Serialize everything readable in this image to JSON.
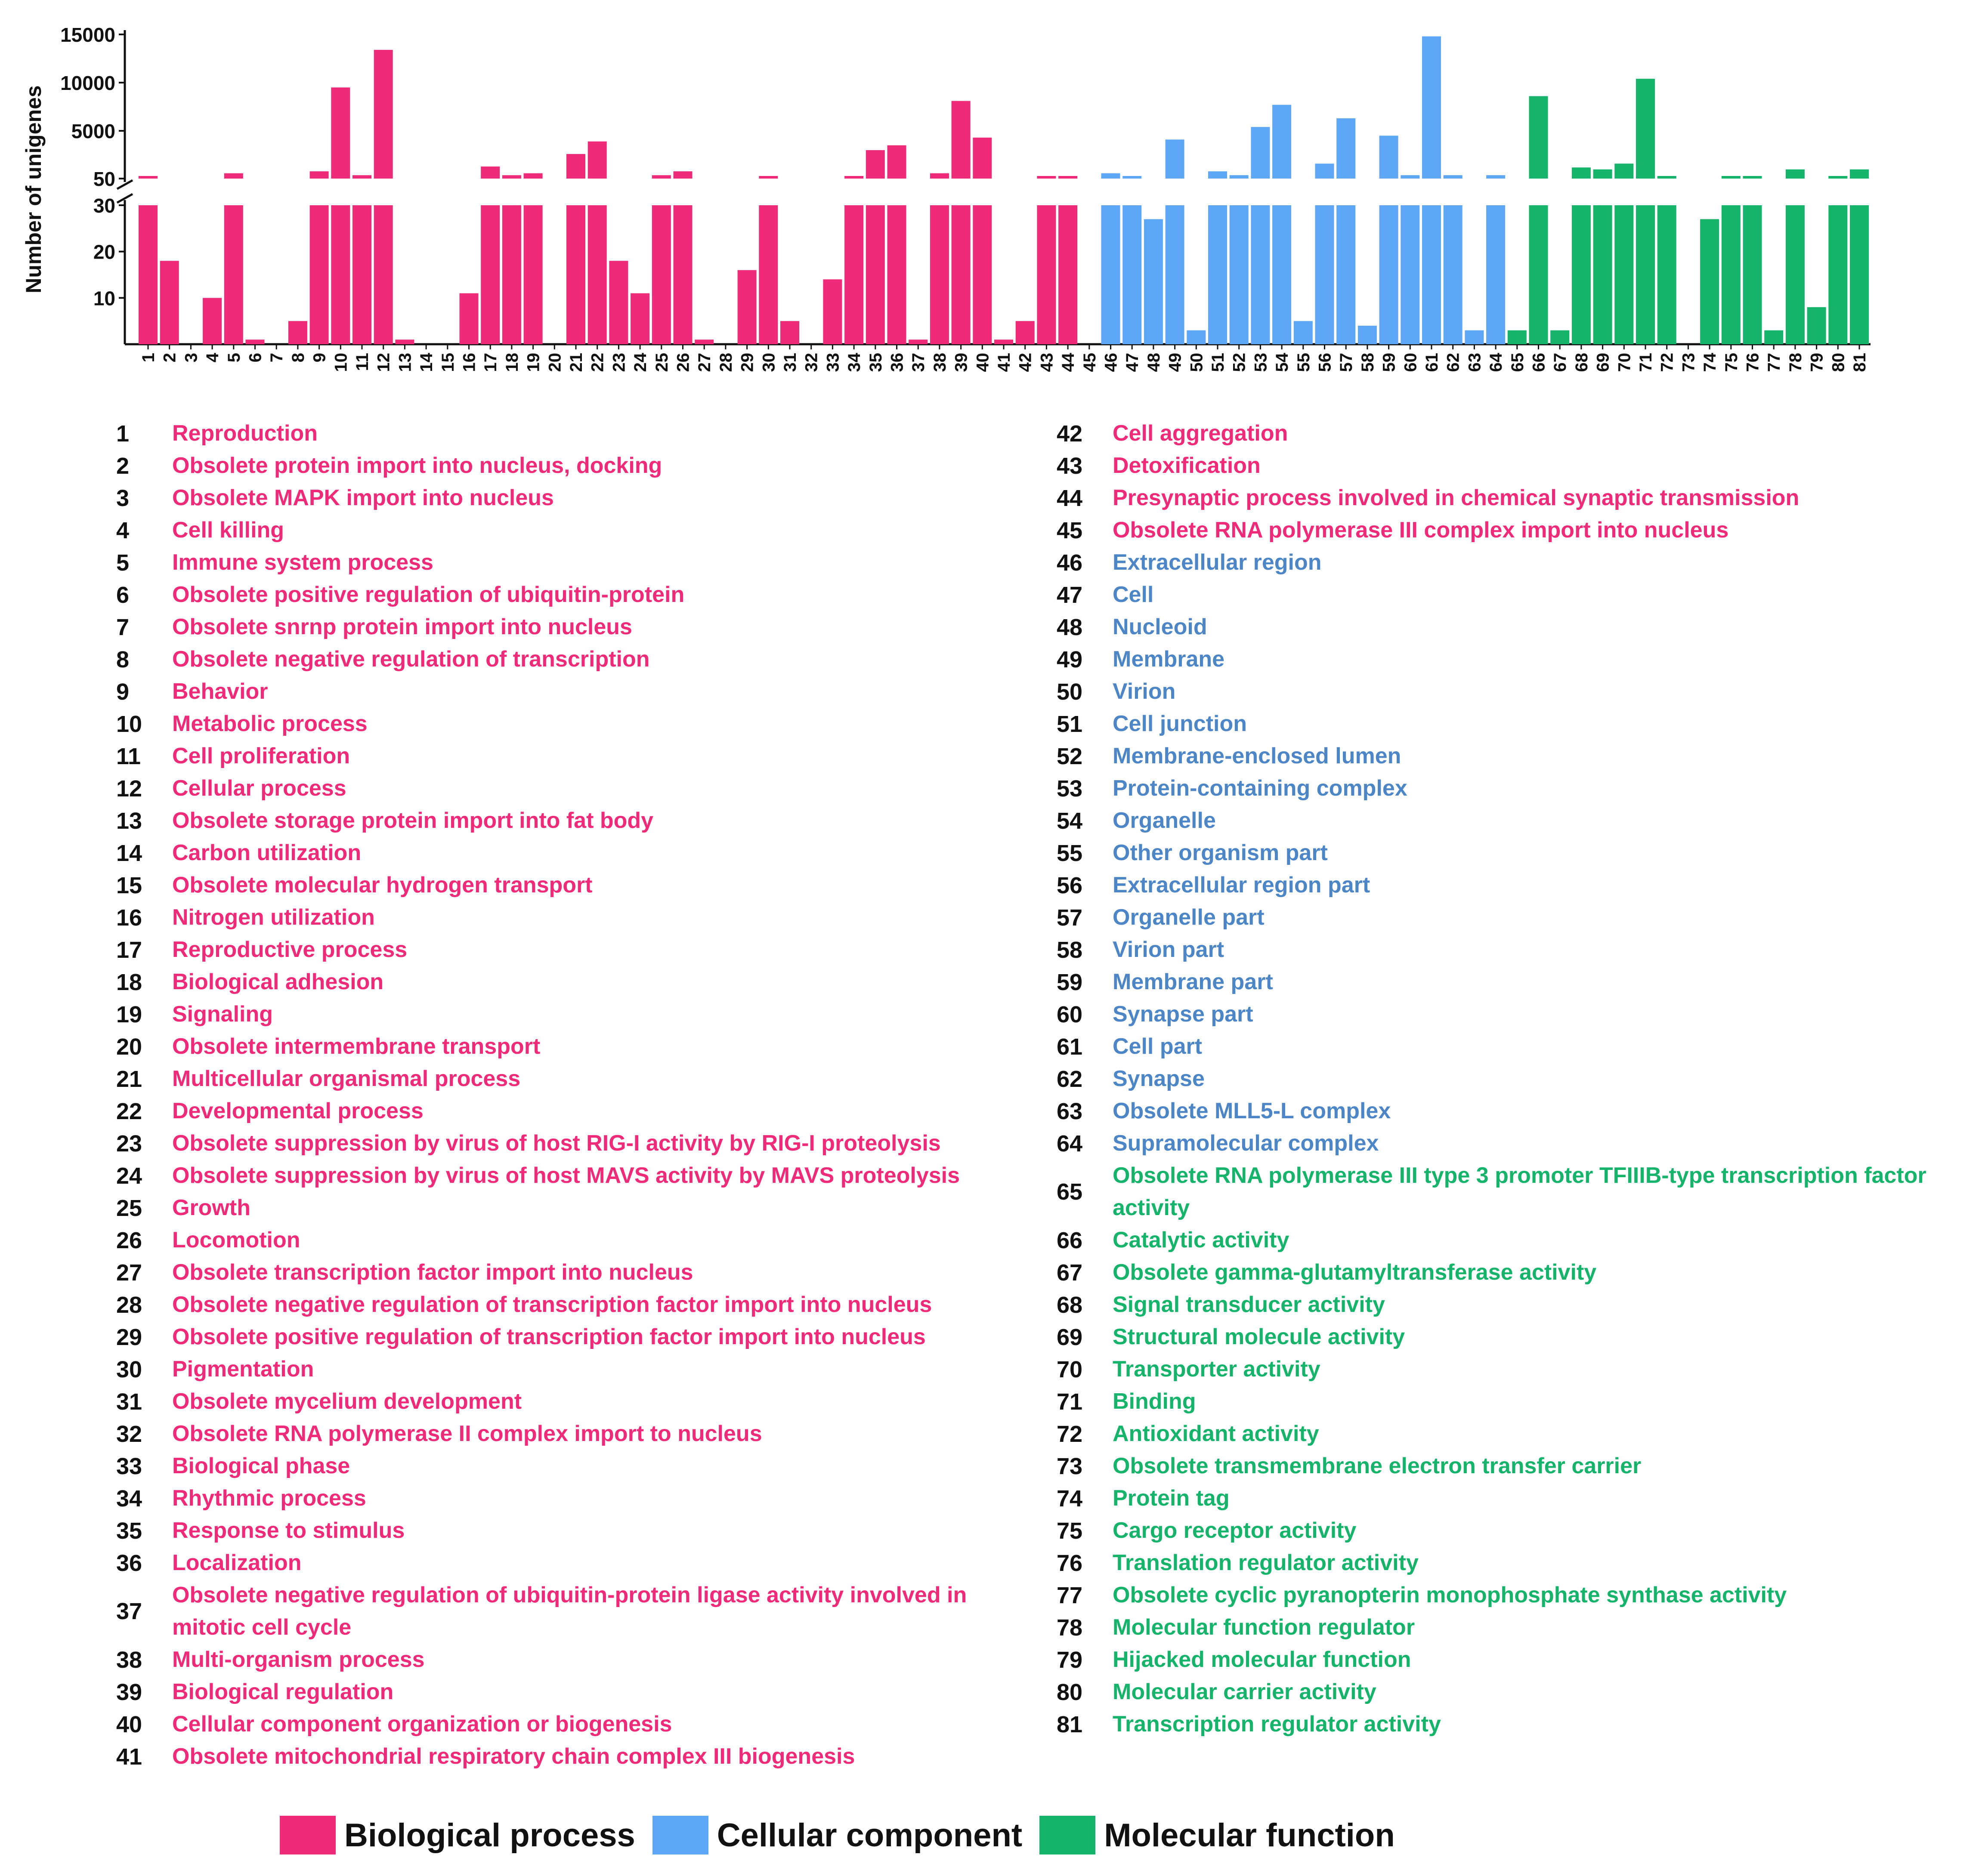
{
  "chart_data": {
    "type": "bar",
    "ylabel": "Number of unigenes",
    "y_axis_break": true,
    "y_ticks_upper": [
      "50",
      "5000",
      "10000",
      "15000"
    ],
    "y_ticks_lower": [
      "10",
      "20",
      "30"
    ],
    "ylim_lower": [
      0,
      30
    ],
    "ylim_upper": [
      50,
      15000
    ],
    "colors": {
      "biological_process": "#ef2a79",
      "cellular_component": "#5ea7f7",
      "molecular_function": "#16b36a"
    },
    "categories": [
      "1",
      "2",
      "3",
      "4",
      "5",
      "6",
      "7",
      "8",
      "9",
      "10",
      "11",
      "12",
      "13",
      "14",
      "15",
      "16",
      "17",
      "18",
      "19",
      "20",
      "21",
      "22",
      "23",
      "24",
      "25",
      "26",
      "27",
      "28",
      "29",
      "30",
      "31",
      "32",
      "33",
      "34",
      "35",
      "36",
      "37",
      "38",
      "39",
      "40",
      "41",
      "42",
      "43",
      "44",
      "45",
      "46",
      "47",
      "48",
      "49",
      "50",
      "51",
      "52",
      "53",
      "54",
      "55",
      "56",
      "57",
      "58",
      "59",
      "60",
      "61",
      "62",
      "63",
      "64",
      "65",
      "66",
      "67",
      "68",
      "69",
      "70",
      "71",
      "72",
      "73",
      "74",
      "75",
      "76",
      "77",
      "78",
      "79",
      "80",
      "81"
    ],
    "groups": [
      "bp",
      "bp",
      "bp",
      "bp",
      "bp",
      "bp",
      "bp",
      "bp",
      "bp",
      "bp",
      "bp",
      "bp",
      "bp",
      "bp",
      "bp",
      "bp",
      "bp",
      "bp",
      "bp",
      "bp",
      "bp",
      "bp",
      "bp",
      "bp",
      "bp",
      "bp",
      "bp",
      "bp",
      "bp",
      "bp",
      "bp",
      "bp",
      "bp",
      "bp",
      "bp",
      "bp",
      "bp",
      "bp",
      "bp",
      "bp",
      "bp",
      "bp",
      "bp",
      "bp",
      "bp",
      "cc",
      "cc",
      "cc",
      "cc",
      "cc",
      "cc",
      "cc",
      "cc",
      "cc",
      "cc",
      "cc",
      "cc",
      "cc",
      "cc",
      "cc",
      "cc",
      "cc",
      "cc",
      "cc",
      "mf",
      "mf",
      "mf",
      "mf",
      "mf",
      "mf",
      "mf",
      "mf",
      "mf",
      "mf",
      "mf",
      "mf",
      "mf",
      "mf",
      "mf",
      "mf",
      "mf"
    ],
    "values": [
      200,
      18,
      0,
      10,
      600,
      1,
      0,
      5,
      800,
      9500,
      400,
      13400,
      1,
      0,
      0,
      11,
      1300,
      400,
      600,
      0,
      2600,
      3900,
      18,
      11,
      400,
      800,
      1,
      0,
      16,
      200,
      5,
      0,
      14,
      200,
      3000,
      3500,
      1,
      600,
      8100,
      4300,
      1,
      5,
      200,
      200,
      0,
      600,
      200,
      27,
      4100,
      3,
      800,
      400,
      5400,
      7700,
      5,
      1600,
      6300,
      4,
      4500,
      400,
      14800,
      400,
      3,
      400,
      3,
      8600,
      3,
      1200,
      1000,
      1600,
      10400,
      100,
      0,
      27,
      200,
      200,
      3,
      1000,
      8,
      200,
      1000
    ]
  },
  "legend_items": [
    {
      "num": "1",
      "label": "Reproduction",
      "group": "bp"
    },
    {
      "num": "2",
      "label": "Obsolete protein import into nucleus, docking",
      "group": "bp"
    },
    {
      "num": "3",
      "label": "Obsolete MAPK import into nucleus",
      "group": "bp"
    },
    {
      "num": "4",
      "label": "Cell killing",
      "group": "bp"
    },
    {
      "num": "5",
      "label": "Immune system process",
      "group": "bp"
    },
    {
      "num": "6",
      "label": "Obsolete positive regulation of ubiquitin-protein",
      "group": "bp"
    },
    {
      "num": "7",
      "label": "Obsolete snrnp protein import into nucleus",
      "group": "bp"
    },
    {
      "num": "8",
      "label": "Obsolete negative regulation of transcription",
      "group": "bp"
    },
    {
      "num": "9",
      "label": "Behavior",
      "group": "bp"
    },
    {
      "num": "10",
      "label": "Metabolic process",
      "group": "bp"
    },
    {
      "num": "11",
      "label": "Cell proliferation",
      "group": "bp"
    },
    {
      "num": "12",
      "label": "Cellular process",
      "group": "bp"
    },
    {
      "num": "13",
      "label": "Obsolete storage protein import into fat body",
      "group": "bp"
    },
    {
      "num": "14",
      "label": "Carbon utilization",
      "group": "bp"
    },
    {
      "num": "15",
      "label": "Obsolete molecular hydrogen transport",
      "group": "bp"
    },
    {
      "num": "16",
      "label": "Nitrogen utilization",
      "group": "bp"
    },
    {
      "num": "17",
      "label": "Reproductive process",
      "group": "bp"
    },
    {
      "num": "18",
      "label": "Biological adhesion",
      "group": "bp"
    },
    {
      "num": "19",
      "label": "Signaling",
      "group": "bp"
    },
    {
      "num": "20",
      "label": "Obsolete intermembrane transport",
      "group": "bp"
    },
    {
      "num": "21",
      "label": "Multicellular organismal process",
      "group": "bp"
    },
    {
      "num": "22",
      "label": "Developmental process",
      "group": "bp"
    },
    {
      "num": "23",
      "label": "Obsolete suppression by virus of host RIG-I activity by RIG-I proteolysis",
      "group": "bp"
    },
    {
      "num": "24",
      "label": "Obsolete suppression by virus of host MAVS activity by MAVS proteolysis",
      "group": "bp"
    },
    {
      "num": "25",
      "label": "Growth",
      "group": "bp"
    },
    {
      "num": "26",
      "label": "Locomotion",
      "group": "bp"
    },
    {
      "num": "27",
      "label": "Obsolete transcription factor import into nucleus",
      "group": "bp"
    },
    {
      "num": "28",
      "label": "Obsolete negative regulation of transcription factor import into nucleus",
      "group": "bp"
    },
    {
      "num": "29",
      "label": "Obsolete positive regulation of transcription factor import into nucleus",
      "group": "bp"
    },
    {
      "num": "30",
      "label": "Pigmentation",
      "group": "bp"
    },
    {
      "num": "31",
      "label": "Obsolete mycelium development",
      "group": "bp"
    },
    {
      "num": "32",
      "label": "Obsolete RNA polymerase II complex import to nucleus",
      "group": "bp"
    },
    {
      "num": "33",
      "label": "Biological phase",
      "group": "bp"
    },
    {
      "num": "34",
      "label": "Rhythmic process",
      "group": "bp"
    },
    {
      "num": "35",
      "label": "Response to stimulus",
      "group": "bp"
    },
    {
      "num": "36",
      "label": "Localization",
      "group": "bp"
    },
    {
      "num": "37",
      "label": "Obsolete negative regulation of ubiquitin-protein ligase activity involved in mitotic cell cycle",
      "group": "bp",
      "two_line": true
    },
    {
      "num": "38",
      "label": "Multi-organism process",
      "group": "bp"
    },
    {
      "num": "39",
      "label": "Biological regulation",
      "group": "bp"
    },
    {
      "num": "40",
      "label": "Cellular component organization or biogenesis",
      "group": "bp"
    },
    {
      "num": "41",
      "label": "Obsolete mitochondrial respiratory chain complex III biogenesis",
      "group": "bp"
    },
    {
      "num": "42",
      "label": "Cell aggregation",
      "group": "bp"
    },
    {
      "num": "43",
      "label": "Detoxification",
      "group": "bp"
    },
    {
      "num": "44",
      "label": "Presynaptic process involved in chemical synaptic transmission",
      "group": "bp"
    },
    {
      "num": "45",
      "label": "Obsolete RNA polymerase III complex import into nucleus",
      "group": "bp"
    },
    {
      "num": "46",
      "label": "Extracellular region",
      "group": "cc"
    },
    {
      "num": "47",
      "label": "Cell",
      "group": "cc"
    },
    {
      "num": "48",
      "label": "Nucleoid",
      "group": "cc"
    },
    {
      "num": "49",
      "label": "Membrane",
      "group": "cc"
    },
    {
      "num": "50",
      "label": "Virion",
      "group": "cc"
    },
    {
      "num": "51",
      "label": "Cell junction",
      "group": "cc"
    },
    {
      "num": "52",
      "label": "Membrane-enclosed lumen",
      "group": "cc"
    },
    {
      "num": "53",
      "label": "Protein-containing complex",
      "group": "cc"
    },
    {
      "num": "54",
      "label": "Organelle",
      "group": "cc"
    },
    {
      "num": "55",
      "label": "Other organism part",
      "group": "cc"
    },
    {
      "num": "56",
      "label": "Extracellular region part",
      "group": "cc"
    },
    {
      "num": "57",
      "label": "Organelle part",
      "group": "cc"
    },
    {
      "num": "58",
      "label": "Virion part",
      "group": "cc"
    },
    {
      "num": "59",
      "label": "Membrane part",
      "group": "cc"
    },
    {
      "num": "60",
      "label": "Synapse part",
      "group": "cc"
    },
    {
      "num": "61",
      "label": "Cell part",
      "group": "cc"
    },
    {
      "num": "62",
      "label": "Synapse",
      "group": "cc"
    },
    {
      "num": "63",
      "label": "Obsolete MLL5-L complex",
      "group": "cc"
    },
    {
      "num": "64",
      "label": "Supramolecular complex",
      "group": "cc"
    },
    {
      "num": "65",
      "label": "Obsolete RNA polymerase III type 3 promoter TFIIIB-type transcription factor activity",
      "group": "mf",
      "two_line": true
    },
    {
      "num": "66",
      "label": "Catalytic activity",
      "group": "mf"
    },
    {
      "num": "67",
      "label": "Obsolete gamma-glutamyltransferase activity",
      "group": "mf"
    },
    {
      "num": "68",
      "label": "Signal transducer activity",
      "group": "mf"
    },
    {
      "num": "69",
      "label": "Structural molecule activity",
      "group": "mf"
    },
    {
      "num": "70",
      "label": "Transporter activity",
      "group": "mf"
    },
    {
      "num": "71",
      "label": "Binding",
      "group": "mf"
    },
    {
      "num": "72",
      "label": "Antioxidant activity",
      "group": "mf"
    },
    {
      "num": "73",
      "label": "Obsolete transmembrane electron transfer carrier",
      "group": "mf"
    },
    {
      "num": "74",
      "label": "Protein tag",
      "group": "mf"
    },
    {
      "num": "75",
      "label": "Cargo receptor activity",
      "group": "mf"
    },
    {
      "num": "76",
      "label": "Translation regulator activity",
      "group": "mf"
    },
    {
      "num": "77",
      "label": "Obsolete cyclic pyranopterin monophosphate synthase activity",
      "group": "mf"
    },
    {
      "num": "78",
      "label": "Molecular function regulator",
      "group": "mf"
    },
    {
      "num": "79",
      "label": "Hijacked molecular function",
      "group": "mf"
    },
    {
      "num": "80",
      "label": "Molecular carrier activity",
      "group": "mf"
    },
    {
      "num": "81",
      "label": "Transcription regulator activity",
      "group": "mf"
    }
  ],
  "color_key": {
    "bp_label": "Biological process",
    "cc_label": "Cellular component",
    "mf_label": "Molecular function"
  }
}
